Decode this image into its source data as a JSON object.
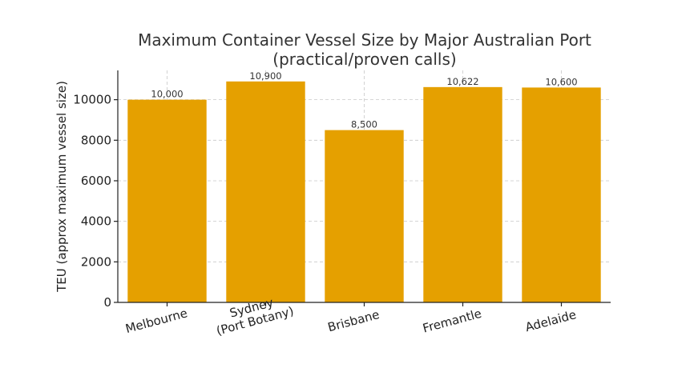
{
  "chart_data": {
    "type": "bar",
    "title": "Maximum Container Vessel Size by Major Australian Port",
    "subtitle": "(practical/proven calls)",
    "xlabel": "",
    "ylabel": "TEU (approx maximum vessel size)",
    "categories": [
      "Melbourne",
      "Sydney\n(Port Botany)",
      "Brisbane",
      "Fremantle",
      "Adelaide"
    ],
    "values": [
      10000,
      10900,
      8500,
      10622,
      10600
    ],
    "data_labels": [
      "10,000",
      "10,900",
      "8,500",
      "10,622",
      "10,600"
    ],
    "ylim": [
      0,
      11445
    ],
    "yticks": [
      0,
      2000,
      4000,
      6000,
      8000,
      10000
    ],
    "ytick_labels": [
      "0",
      "2000",
      "4000",
      "6000",
      "8000",
      "10000"
    ],
    "bar_color": "#E5A000",
    "grid": true,
    "legend": "none"
  }
}
